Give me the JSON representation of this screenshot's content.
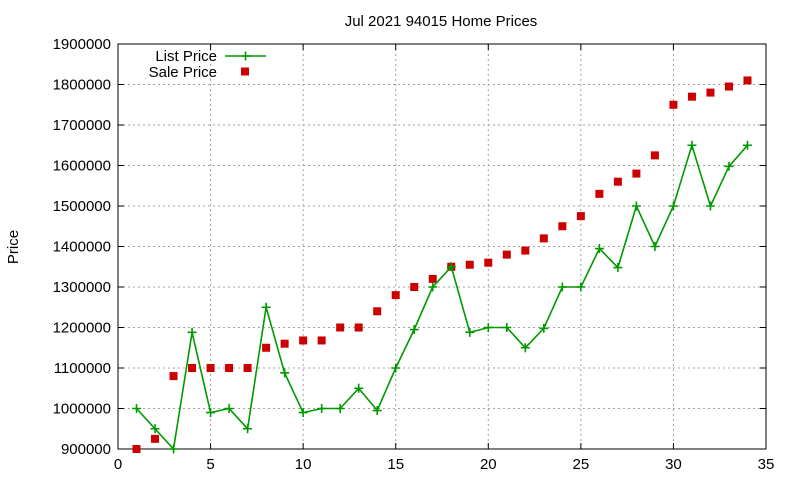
{
  "chart_data": {
    "type": "line",
    "title": "Jul 2021 94015 Home Prices",
    "xlabel": "",
    "ylabel": "Price",
    "xlim": [
      0,
      35
    ],
    "ylim": [
      900000,
      1900000
    ],
    "xticks": [
      0,
      5,
      10,
      15,
      20,
      25,
      30,
      35
    ],
    "yticks": [
      900000,
      1000000,
      1100000,
      1200000,
      1300000,
      1400000,
      1500000,
      1600000,
      1700000,
      1800000,
      1900000
    ],
    "grid": true,
    "legend_position": "top-left",
    "series": [
      {
        "name": "List Price",
        "style": "line-plus",
        "color": "#009900",
        "x": [
          1,
          2,
          3,
          4,
          5,
          6,
          7,
          8,
          9,
          10,
          11,
          12,
          13,
          14,
          15,
          16,
          17,
          18,
          19,
          20,
          21,
          22,
          23,
          24,
          25,
          26,
          27,
          28,
          29,
          30,
          31,
          32,
          33,
          34
        ],
        "y": [
          1000000,
          950000,
          900000,
          1188000,
          990000,
          1000000,
          950000,
          1250000,
          1088000,
          990000,
          1000000,
          1000000,
          1050000,
          995000,
          1100000,
          1195000,
          1300000,
          1350000,
          1188000,
          1200000,
          1200000,
          1150000,
          1198000,
          1300000,
          1300000,
          1395000,
          1348000,
          1500000,
          1400000,
          1500000,
          1650000,
          1500000,
          1598000,
          1650000
        ]
      },
      {
        "name": "Sale Price",
        "style": "square",
        "color": "#cc0000",
        "x": [
          1,
          2,
          3,
          4,
          5,
          6,
          7,
          8,
          9,
          10,
          11,
          12,
          13,
          14,
          15,
          16,
          17,
          18,
          19,
          20,
          21,
          22,
          23,
          24,
          25,
          26,
          27,
          28,
          29,
          30,
          31,
          32,
          33,
          34
        ],
        "y": [
          900000,
          925000,
          1080000,
          1100000,
          1100000,
          1100000,
          1100000,
          1150000,
          1160000,
          1168000,
          1168000,
          1200000,
          1200000,
          1240000,
          1280000,
          1300000,
          1320000,
          1350000,
          1355000,
          1360000,
          1380000,
          1390000,
          1420000,
          1450000,
          1475000,
          1530000,
          1560000,
          1580000,
          1625000,
          1750000,
          1770000,
          1780000,
          1795000,
          1810000
        ]
      }
    ]
  }
}
